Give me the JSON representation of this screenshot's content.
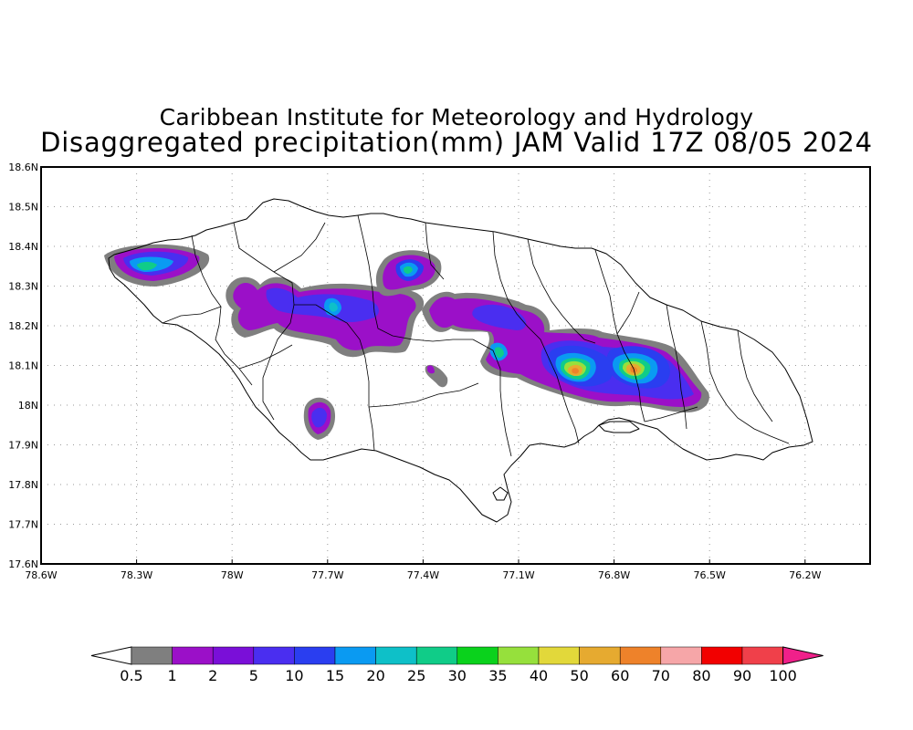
{
  "header": {
    "title_line1": "Caribbean Institute for Meteorology and Hydrology",
    "title_line2": "Disaggregated precipitation(mm) JAM Valid 17Z 08/05 2024"
  },
  "axes": {
    "lon_ticks": [
      "78.6W",
      "78.3W",
      "78W",
      "77.7W",
      "77.4W",
      "77.1W",
      "76.8W",
      "76.5W",
      "76.2W"
    ],
    "lat_ticks": [
      "18.6N",
      "18.5N",
      "18.4N",
      "18.3N",
      "18.2N",
      "18.1N",
      "18N",
      "17.9N",
      "17.8N",
      "17.7N",
      "17.6N"
    ],
    "lon_range": [
      -78.6,
      -76.0
    ],
    "lat_range": [
      17.6,
      18.6
    ]
  },
  "colorbar": {
    "levels": [
      "0.5",
      "1",
      "2",
      "5",
      "10",
      "15",
      "20",
      "25",
      "30",
      "35",
      "40",
      "50",
      "60",
      "70",
      "80",
      "90",
      "100"
    ],
    "colors": [
      "#7f7f7f",
      "#9b10c8",
      "#7a0fd8",
      "#4a2ef0",
      "#2a3ef0",
      "#0a9af2",
      "#0ec0c8",
      "#10cc88",
      "#0ad21c",
      "#96e03c",
      "#e2d83a",
      "#e6aa30",
      "#ee822a",
      "#f6a6a8",
      "#f20000",
      "#f0404a"
    ],
    "under_color": "#ffffff",
    "over_color": "#f0208a"
  },
  "precip_cells": [
    {
      "lon": -78.27,
      "lat": 18.35,
      "rx": 0.09,
      "ry": 0.04,
      "level": 6
    },
    {
      "lon": -77.4,
      "lat": 18.34,
      "rx": 0.03,
      "ry": 0.03,
      "level": 7
    },
    {
      "lon": -77.68,
      "lat": 18.25,
      "rx": 0.04,
      "ry": 0.03,
      "level": 5
    },
    {
      "lon": -77.2,
      "lat": 18.12,
      "rx": 0.03,
      "ry": 0.03,
      "level": 7
    },
    {
      "lon": -76.91,
      "lat": 18.09,
      "rx": 0.04,
      "ry": 0.035,
      "level": 12
    },
    {
      "lon": -76.73,
      "lat": 18.09,
      "rx": 0.04,
      "ry": 0.03,
      "level": 12
    },
    {
      "lon": -77.7,
      "lat": 17.96,
      "rx": 0.03,
      "ry": 0.03,
      "level": 5
    }
  ]
}
